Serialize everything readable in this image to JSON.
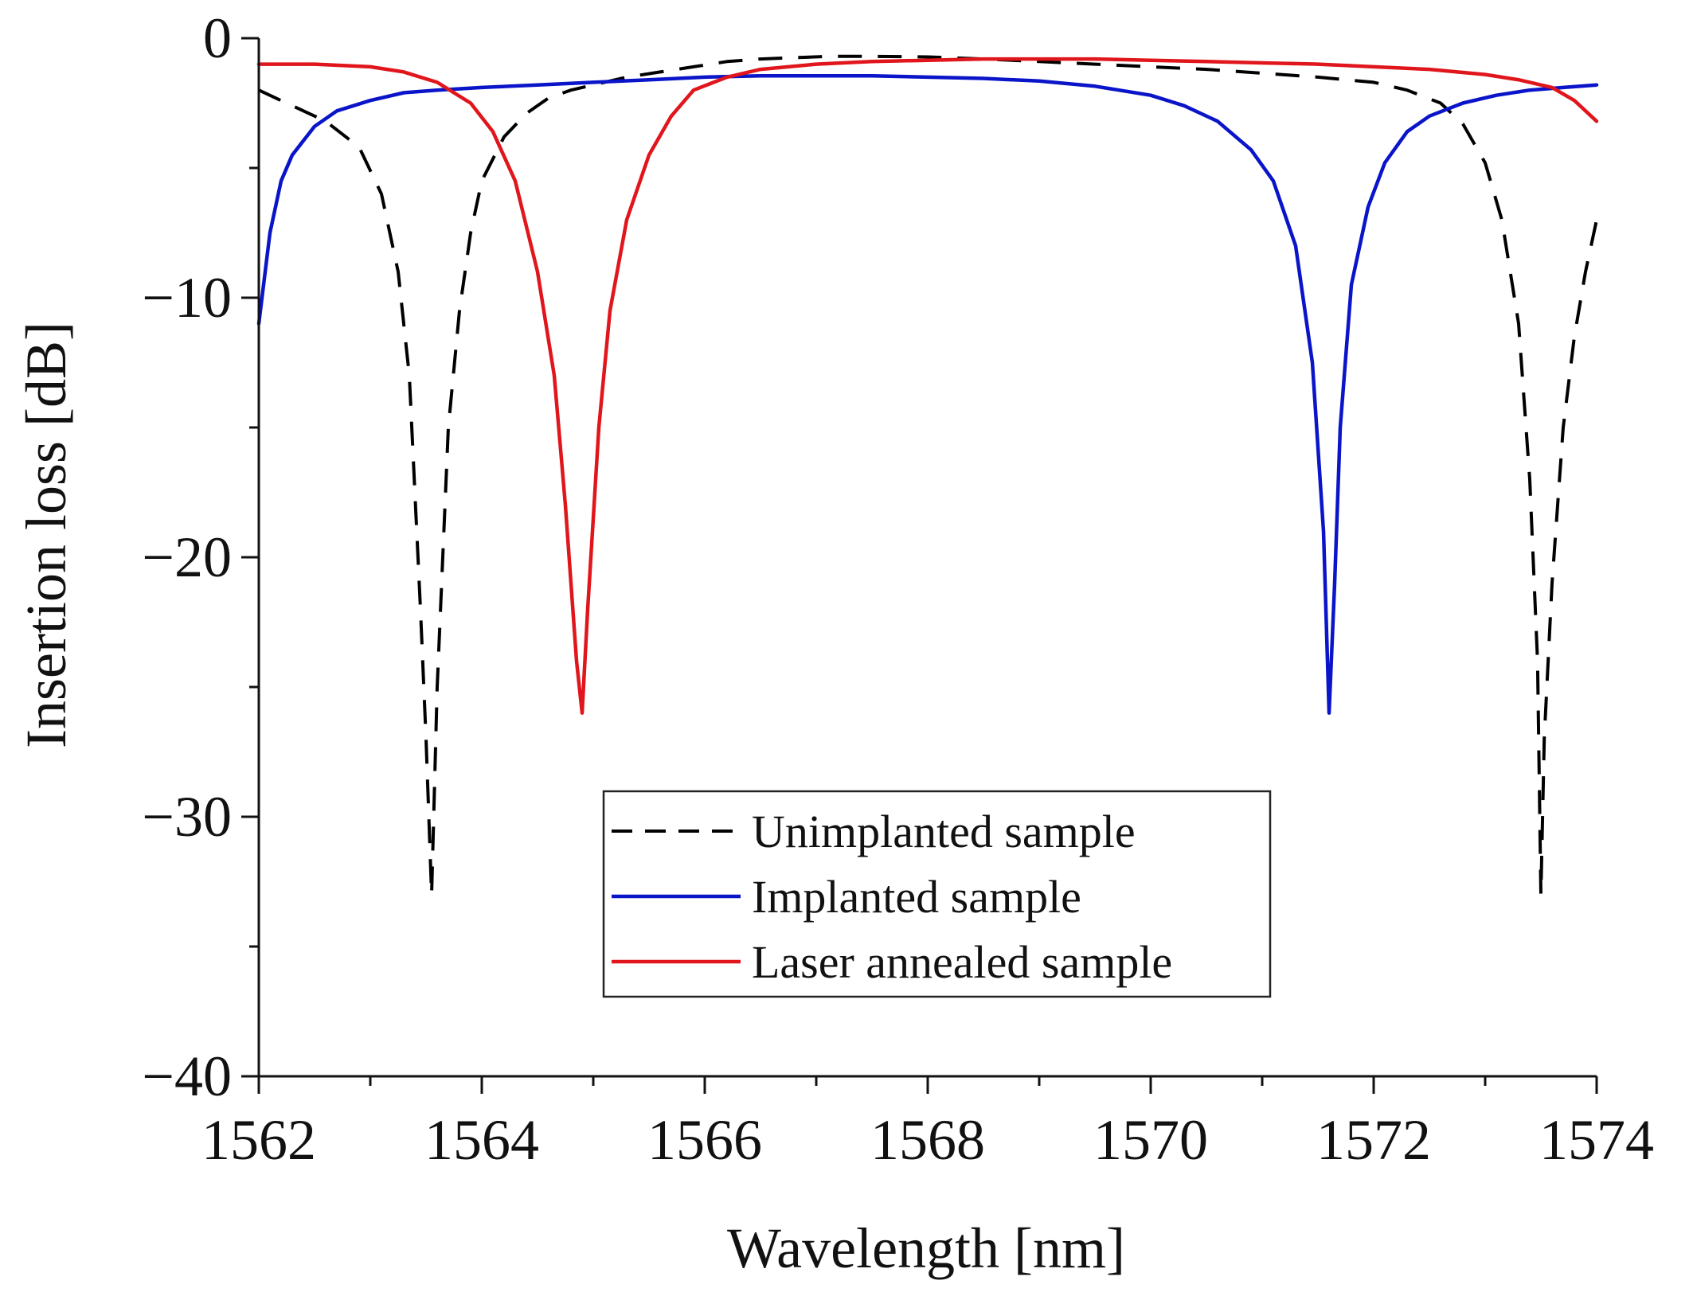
{
  "chart_data": {
    "type": "line",
    "title": "",
    "xlabel": "Wavelength [nm]",
    "ylabel": "Insertion loss [dB]",
    "xlim": [
      1562,
      1574
    ],
    "ylim": [
      -40,
      0
    ],
    "grid": false,
    "legend_position": "bottom-center",
    "x_ticks": [
      1562,
      1564,
      1566,
      1568,
      1570,
      1572,
      1574
    ],
    "x_tick_labels": [
      "1562",
      "1564",
      "1566",
      "1568",
      "1570",
      "1572",
      "1574"
    ],
    "x_minor_ticks": [
      1563,
      1565,
      1567,
      1569,
      1571,
      1573
    ],
    "y_ticks": [
      0,
      -10,
      -20,
      -30,
      -40
    ],
    "y_tick_labels": [
      "0",
      "−10",
      "−20",
      "−30",
      "−40"
    ],
    "y_minor_ticks": [
      -5,
      -15,
      -25,
      -35
    ],
    "series": [
      {
        "name": "Unimplanted sample",
        "color": "#000000",
        "dash": "dashed",
        "x": [
          1562.0,
          1562.3,
          1562.6,
          1562.9,
          1563.1,
          1563.25,
          1563.35,
          1563.45,
          1563.5,
          1563.55,
          1563.6,
          1563.7,
          1563.8,
          1563.9,
          1564.0,
          1564.2,
          1564.4,
          1564.6,
          1564.8,
          1565.0,
          1565.3,
          1565.6,
          1565.9,
          1566.2,
          1566.5,
          1566.8,
          1567.1,
          1567.5,
          1568.0,
          1568.5,
          1569.0,
          1569.5,
          1570.0,
          1570.5,
          1571.0,
          1571.5,
          1572.0,
          1572.3,
          1572.6,
          1572.8,
          1573.0,
          1573.15,
          1573.3,
          1573.4,
          1573.47,
          1573.5,
          1573.53,
          1573.6,
          1573.7,
          1573.8,
          1573.9,
          1574.0
        ],
        "y": [
          -2.0,
          -2.6,
          -3.2,
          -4.2,
          -6.0,
          -9.0,
          -13.0,
          -22.0,
          -27.0,
          -33.0,
          -25.0,
          -15.0,
          -10.5,
          -7.5,
          -5.5,
          -3.8,
          -2.9,
          -2.3,
          -2.0,
          -1.8,
          -1.5,
          -1.3,
          -1.1,
          -0.9,
          -0.8,
          -0.75,
          -0.7,
          -0.7,
          -0.72,
          -0.8,
          -0.9,
          -1.0,
          -1.1,
          -1.2,
          -1.35,
          -1.5,
          -1.7,
          -2.0,
          -2.5,
          -3.3,
          -4.8,
          -7.0,
          -11.0,
          -17.0,
          -24.0,
          -33.0,
          -27.0,
          -21.0,
          -15.0,
          -11.5,
          -9.0,
          -7.0
        ]
      },
      {
        "name": "Implanted sample",
        "color": "#0a14c8",
        "dash": "solid",
        "x": [
          1562.0,
          1562.1,
          1562.2,
          1562.3,
          1562.5,
          1562.7,
          1563.0,
          1563.3,
          1563.6,
          1564.0,
          1564.5,
          1565.0,
          1565.5,
          1566.0,
          1566.5,
          1567.0,
          1567.5,
          1568.0,
          1568.5,
          1569.0,
          1569.5,
          1570.0,
          1570.3,
          1570.6,
          1570.9,
          1571.1,
          1571.3,
          1571.45,
          1571.55,
          1571.6,
          1571.65,
          1571.7,
          1571.8,
          1571.95,
          1572.1,
          1572.3,
          1572.5,
          1572.8,
          1573.1,
          1573.4,
          1573.7,
          1574.0
        ],
        "y": [
          -11.0,
          -7.5,
          -5.5,
          -4.5,
          -3.4,
          -2.8,
          -2.4,
          -2.1,
          -2.0,
          -1.9,
          -1.8,
          -1.7,
          -1.6,
          -1.5,
          -1.45,
          -1.45,
          -1.45,
          -1.5,
          -1.55,
          -1.65,
          -1.85,
          -2.2,
          -2.6,
          -3.2,
          -4.3,
          -5.5,
          -8.0,
          -12.5,
          -19.0,
          -26.0,
          -21.0,
          -15.0,
          -9.5,
          -6.5,
          -4.8,
          -3.6,
          -3.0,
          -2.5,
          -2.2,
          -2.0,
          -1.9,
          -1.8
        ]
      },
      {
        "name": "Laser annealed sample",
        "color": "#e0161c",
        "dash": "solid",
        "x": [
          1562.0,
          1562.5,
          1563.0,
          1563.3,
          1563.6,
          1563.9,
          1564.1,
          1564.3,
          1564.5,
          1564.65,
          1564.75,
          1564.85,
          1564.9,
          1564.95,
          1565.05,
          1565.15,
          1565.3,
          1565.5,
          1565.7,
          1565.9,
          1566.2,
          1566.5,
          1567.0,
          1567.5,
          1568.0,
          1568.5,
          1569.0,
          1569.5,
          1570.0,
          1570.5,
          1571.0,
          1571.5,
          1572.0,
          1572.5,
          1573.0,
          1573.3,
          1573.6,
          1573.8,
          1574.0
        ],
        "y": [
          -1.0,
          -1.0,
          -1.1,
          -1.3,
          -1.7,
          -2.5,
          -3.6,
          -5.5,
          -9.0,
          -13.0,
          -18.0,
          -24.0,
          -26.0,
          -22.0,
          -15.0,
          -10.5,
          -7.0,
          -4.5,
          -3.0,
          -2.0,
          -1.5,
          -1.2,
          -1.0,
          -0.9,
          -0.85,
          -0.8,
          -0.8,
          -0.8,
          -0.85,
          -0.9,
          -0.95,
          -1.0,
          -1.1,
          -1.2,
          -1.4,
          -1.6,
          -1.9,
          -2.4,
          -3.2
        ]
      }
    ]
  }
}
